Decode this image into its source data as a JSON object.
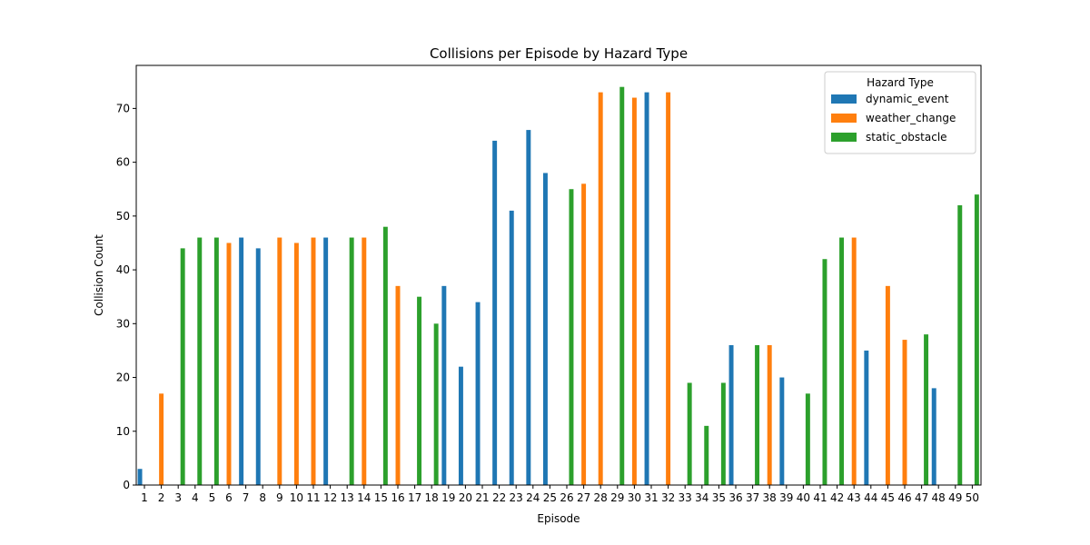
{
  "chart_data": {
    "type": "bar",
    "title": "Collisions per Episode by Hazard Type",
    "xlabel": "Episode",
    "ylabel": "Collision Count",
    "ylim": [
      0,
      78
    ],
    "yticks": [
      0,
      10,
      20,
      30,
      40,
      50,
      60,
      70
    ],
    "categories": [
      "1",
      "2",
      "3",
      "4",
      "5",
      "6",
      "7",
      "8",
      "9",
      "10",
      "11",
      "12",
      "13",
      "14",
      "15",
      "16",
      "17",
      "18",
      "19",
      "20",
      "21",
      "22",
      "23",
      "24",
      "25",
      "26",
      "27",
      "28",
      "29",
      "30",
      "31",
      "32",
      "33",
      "34",
      "35",
      "36",
      "37",
      "38",
      "39",
      "40",
      "41",
      "42",
      "43",
      "44",
      "45",
      "46",
      "47",
      "48",
      "49",
      "50"
    ],
    "legend": {
      "title": "Hazard Type",
      "position": "top-right"
    },
    "series": [
      {
        "name": "dynamic_event",
        "color": "#1f77b4",
        "values": [
          3,
          null,
          null,
          null,
          null,
          null,
          46,
          44,
          null,
          null,
          null,
          46,
          null,
          null,
          null,
          null,
          null,
          null,
          37,
          22,
          34,
          64,
          51,
          66,
          58,
          null,
          null,
          null,
          null,
          null,
          73,
          null,
          null,
          null,
          null,
          26,
          null,
          null,
          20,
          null,
          null,
          null,
          null,
          25,
          null,
          null,
          null,
          18,
          null,
          null
        ]
      },
      {
        "name": "weather_change",
        "color": "#ff7f0e",
        "values": [
          null,
          17,
          null,
          null,
          null,
          45,
          null,
          null,
          46,
          45,
          46,
          null,
          null,
          46,
          null,
          37,
          null,
          null,
          null,
          null,
          null,
          null,
          null,
          null,
          null,
          null,
          56,
          73,
          null,
          72,
          null,
          73,
          null,
          null,
          null,
          null,
          null,
          26,
          null,
          null,
          null,
          null,
          46,
          null,
          37,
          27,
          null,
          null,
          null,
          null
        ]
      },
      {
        "name": "static_obstacle",
        "color": "#2ca02c",
        "values": [
          null,
          null,
          44,
          46,
          46,
          null,
          null,
          null,
          null,
          null,
          null,
          null,
          46,
          null,
          48,
          null,
          35,
          30,
          null,
          null,
          null,
          null,
          null,
          null,
          null,
          55,
          null,
          null,
          74,
          null,
          null,
          null,
          19,
          11,
          19,
          null,
          26,
          null,
          null,
          17,
          42,
          46,
          null,
          null,
          null,
          null,
          28,
          null,
          52,
          54
        ]
      }
    ]
  }
}
